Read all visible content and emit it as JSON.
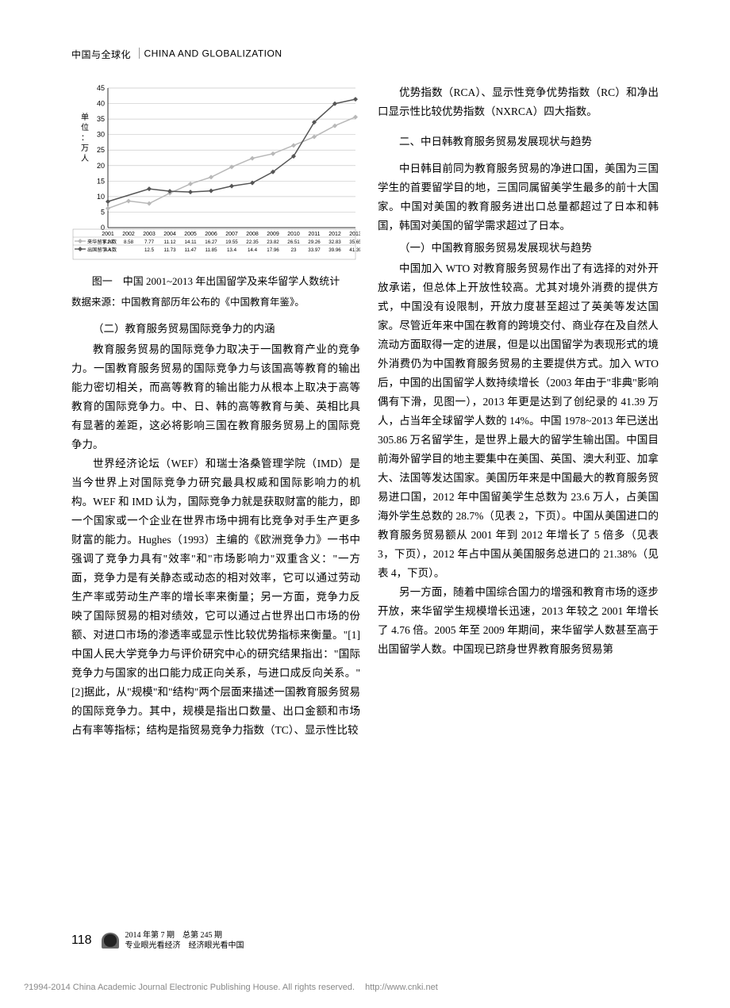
{
  "header": {
    "cn": "中国与全球化",
    "en": "CHINA AND GLOBALIZATION"
  },
  "chart": {
    "type": "line",
    "y_axis_label": "单位：万人",
    "ylim": [
      0,
      45
    ],
    "yticks": [
      0,
      5,
      10,
      15,
      20,
      25,
      30,
      35,
      40,
      45
    ],
    "ytick_fontsize": 9,
    "xcats": [
      "2001",
      "2002",
      "2003",
      "2004",
      "2005",
      "2006",
      "2007",
      "2008",
      "2009",
      "2010",
      "2011",
      "2012",
      "2013"
    ],
    "series": [
      {
        "name": "来华留学人数",
        "color": "#b8b8b8",
        "marker": "diamond",
        "values": [
          6.19,
          8.58,
          7.77,
          11.12,
          14.11,
          16.27,
          19.55,
          22.35,
          23.82,
          26.51,
          29.26,
          32.83,
          35.65
        ]
      },
      {
        "name": "出国留学人数",
        "color": "#555555",
        "marker": "diamond",
        "values": [
          8.4,
          "",
          12.5,
          11.73,
          11.47,
          11.85,
          13.4,
          14.4,
          17.96,
          23.0,
          33.97,
          39.96,
          41.39
        ]
      }
    ],
    "grid_color": "#c9c9c9",
    "line_width": 1.5,
    "background_color": "#ffffff",
    "legend_rows": [
      "—◆—来华留学人数 6.19  8.58  7.77 11.12 14.11 16.27 19.55 22.35 23.82 26.51 29.26 32.83 35.65",
      "—◆—出国留学人数  8.4        12.5 11.73 11.47 11.85  13.4 14.4  17.96 23.0  33.97 39.96 41.39"
    ]
  },
  "fig_caption": "图一　中国 2001~2013 年出国留学及来华留学人数统计",
  "fig_source": "数据来源：中国教育部历年公布的《中国教育年鉴》。",
  "left": {
    "sec_b_head": "（二）教育服务贸易国际竞争力的内涵",
    "p1": "教育服务贸易的国际竞争力取决于一国教育产业的竞争力。一国教育服务贸易的国际竞争力与该国高等教育的输出能力密切相关，而高等教育的输出能力从根本上取决于高等教育的国际竞争力。中、日、韩的高等教育与美、英相比具有显著的差距，这必将影响三国在教育服务贸易上的国际竞争力。",
    "p2": "世界经济论坛（WEF）和瑞士洛桑管理学院（IMD）是当今世界上对国际竞争力研究最具权威和国际影响力的机构。WEF 和 IMD 认为，国际竞争力就是获取财富的能力，即一个国家或一个企业在世界市场中拥有比竞争对手生产更多财富的能力。Hughes（1993）主编的《欧洲竞争力》一书中强调了竞争力具有\"效率\"和\"市场影响力\"双重含义：\"一方面，竞争力是有关静态或动态的相对效率，它可以通过劳动生产率或劳动生产率的增长率来衡量；另一方面，竞争力反映了国际贸易的相对绩效，它可以通过占世界出口市场的份额、对进口市场的渗透率或显示性比较优势指标来衡量。\"[1]中国人民大学竞争力与评价研究中心的研究结果指出：\"国际竞争力与国家的出口能力成正向关系，与进口成反向关系。\"[2]据此，从\"规模\"和\"结构\"两个层面来描述一国教育服务贸易的国际竞争力。其中，规模是指出口数量、出口金额和市场占有率等指标；结构是指贸易竞争力指数（TC）、显示性比较"
  },
  "right": {
    "p_top": "优势指数（RCA）、显示性竞争优势指数（RC）和净出口显示性比较优势指数（NXRCA）四大指数。",
    "sec2_head": "二、中日韩教育服务贸易发展现状与趋势",
    "p_a": "中日韩目前同为教育服务贸易的净进口国，美国为三国学生的首要留学目的地，三国同属留美学生最多的前十大国家。中国对美国的教育服务进出口总量都超过了日本和韩国，韩国对美国的留学需求超过了日本。",
    "sec_a_head": "（一）中国教育服务贸易发展现状与趋势",
    "p_b": "中国加入 WTO 对教育服务贸易作出了有选择的对外开放承诺，但总体上开放性较高。尤其对境外消费的提供方式，中国没有设限制，开放力度甚至超过了英美等发达国家。尽管近年来中国在教育的跨境交付、商业存在及自然人流动方面取得一定的进展，但是以出国留学为表现形式的境外消费仍为中国教育服务贸易的主要提供方式。加入 WTO 后，中国的出国留学人数持续增长（2003 年由于\"非典\"影响偶有下滑，见图一），2013 年更是达到了创纪录的 41.39 万人，占当年全球留学人数的 14%。中国 1978~2013 年已送出 305.86 万名留学生，是世界上最大的留学生输出国。中国目前海外留学目的地主要集中在美国、英国、澳大利亚、加拿大、法国等发达国家。美国历年来是中国最大的教育服务贸易进口国，2012 年中国留美学生总数为 23.6 万人，占美国海外学生总数的 28.7%（见表 2，下页）。中国从美国进口的教育服务贸易额从 2001 年到 2012 年增长了 5 倍多（见表 3，下页），2012 年占中国从美国服务总进口的 21.38%（见表 4，下页）。",
    "p_c": "另一方面，随着中国综合国力的增强和教育市场的逐步开放，来华留学生规模增长迅速，2013 年较之 2001 年增长了 4.76 倍。2005 年至 2009 年期间，来华留学人数甚至高于出国留学人数。中国现已跻身世界教育服务贸易第"
  },
  "footer": {
    "page_number": "118",
    "issue_line1": "2014 年第 7 期　总第 245 期",
    "issue_line2": "专业眼光看经济　经济眼光看中国"
  },
  "copyright": {
    "text": "?1994-2014 China Academic Journal Electronic Publishing House. All rights reserved.",
    "url": "http://www.cnki.net"
  }
}
